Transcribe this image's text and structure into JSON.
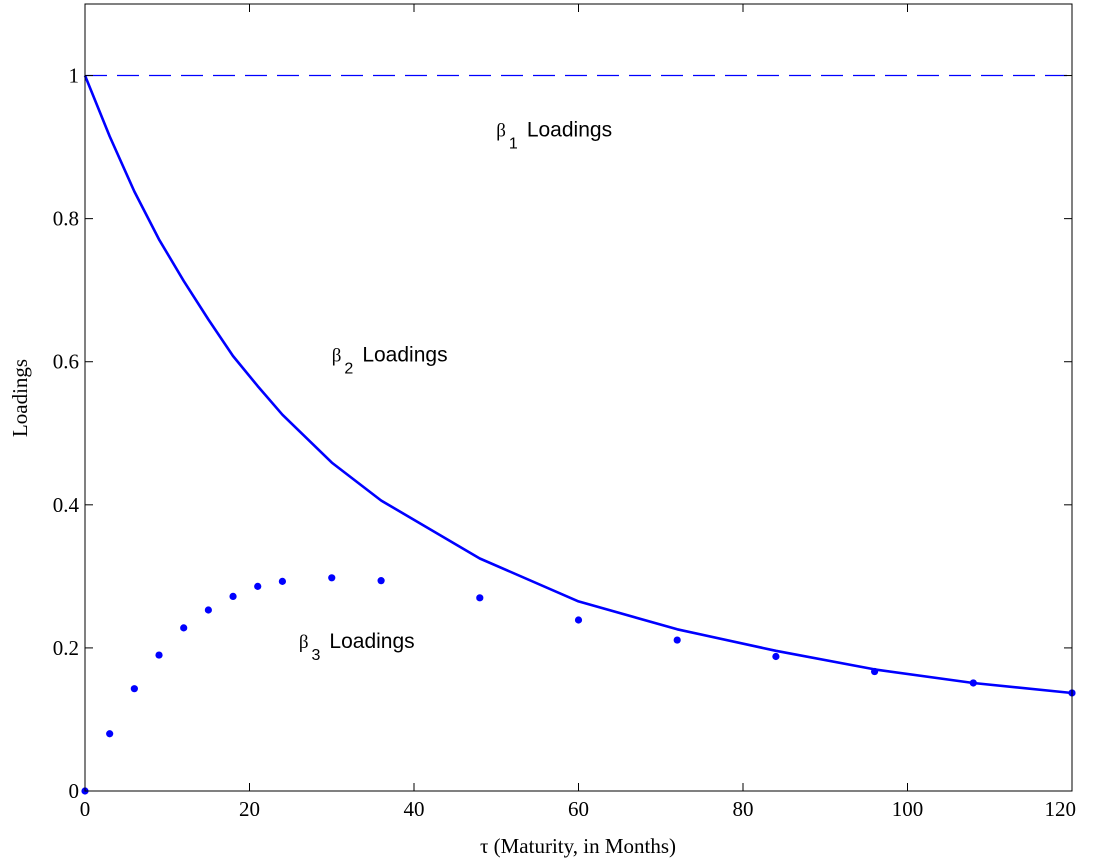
{
  "chart_data": {
    "type": "line",
    "title": "",
    "xlabel": "τ (Maturity, in Months)",
    "ylabel": "Loadings",
    "xlim": [
      0,
      120
    ],
    "ylim": [
      0,
      1.1
    ],
    "xticks": [
      0,
      20,
      40,
      60,
      80,
      100,
      120
    ],
    "yticks": [
      0,
      0.2,
      0.4,
      0.6,
      0.8,
      1
    ],
    "xtick_labels": [
      "0",
      "20",
      "40",
      "60",
      "80",
      "100",
      "120"
    ],
    "ytick_labels": [
      "0",
      "0.2",
      "0.4",
      "0.6",
      "0.8",
      "1"
    ],
    "grid": false,
    "series": [
      {
        "style": "dashed",
        "color": "#0000ff",
        "x": [
          0,
          120
        ],
        "y": [
          1,
          1
        ]
      },
      {
        "style": "solid",
        "color": "#0000ff",
        "x": [
          0,
          3,
          6,
          9,
          12,
          15,
          18,
          21,
          24,
          30,
          36,
          48,
          60,
          72,
          84,
          96,
          108,
          120
        ],
        "y": [
          1.0,
          0.915,
          0.838,
          0.771,
          0.713,
          0.659,
          0.608,
          0.566,
          0.526,
          0.459,
          0.406,
          0.325,
          0.265,
          0.226,
          0.196,
          0.17,
          0.151,
          0.137
        ]
      },
      {
        "style": "dots",
        "color": "#0000ff",
        "x": [
          0,
          3,
          6,
          9,
          12,
          15,
          18,
          21,
          24,
          30,
          36,
          48,
          60,
          72,
          84,
          96,
          108,
          120
        ],
        "y": [
          0.0,
          0.08,
          0.143,
          0.19,
          0.228,
          0.253,
          0.272,
          0.286,
          0.293,
          0.298,
          0.294,
          0.27,
          0.239,
          0.211,
          0.188,
          0.167,
          0.151,
          0.137
        ]
      }
    ],
    "annotations": [
      {
        "symbol": "β",
        "subscript": "1",
        "text": "Loadings",
        "x": 50,
        "y": 0.915
      },
      {
        "symbol": "β",
        "subscript": "2",
        "text": "Loadings",
        "x": 30,
        "y": 0.6
      },
      {
        "symbol": "β",
        "subscript": "3",
        "text": "Loadings",
        "x": 26,
        "y": 0.2
      }
    ]
  }
}
